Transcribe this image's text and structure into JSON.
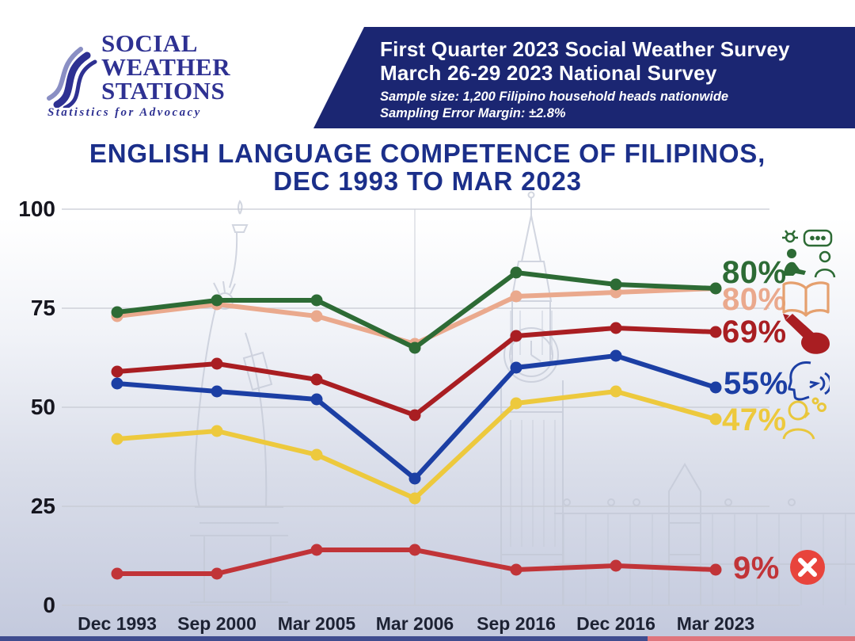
{
  "header": {
    "logo": {
      "line1": "SOCIAL",
      "line2": "WEATHER",
      "line3": "STATIONS",
      "tagline": "Statistics for Advocacy",
      "brand_color": "#2e3192"
    },
    "banner": {
      "title_line1": "First Quarter 2023 Social Weather Survey",
      "title_line2": "March 26-29 2023 National Survey",
      "subtitle_line1": "Sample size: 1,200 Filipino household heads nationwide",
      "subtitle_line2": "Sampling Error Margin: ±2.8%",
      "bg_color": "#1b2672"
    }
  },
  "title": {
    "line1": "ENGLISH LANGUAGE COMPETENCE OF FILIPINOS,",
    "line2": "DEC 1993 TO MAR 2023",
    "color": "#1b2f8a"
  },
  "chart_data": {
    "type": "line",
    "title": "English Language Competence of Filipinos, Dec 1993 to Mar 2023",
    "categories": [
      "Dec 1993",
      "Sep 2000",
      "Mar 2005",
      "Mar 2006",
      "Sep 2016",
      "Dec 2016",
      "Mar 2023"
    ],
    "y_ticks": [
      100,
      75,
      50,
      25,
      0
    ],
    "ylim": [
      0,
      100
    ],
    "grid": "horizontal",
    "legend_position": "right-end-labels-with-icons",
    "series": [
      {
        "name": "Understand spoken English",
        "icon": "understand-icon",
        "color": "#2d6b35",
        "values": [
          74,
          77,
          77,
          65,
          84,
          81,
          80
        ],
        "end_label": "80%"
      },
      {
        "name": "Read English",
        "icon": "read-book-icon",
        "color": "#eaa98d",
        "values": [
          73,
          76,
          73,
          66,
          78,
          79,
          80
        ],
        "end_label": "80%"
      },
      {
        "name": "Write English",
        "icon": "write-hand-icon",
        "color": "#a91e22",
        "values": [
          59,
          61,
          57,
          48,
          68,
          70,
          69
        ],
        "end_label": "69%"
      },
      {
        "name": "Speak English",
        "icon": "speak-icon",
        "color": "#1c3fa4",
        "values": [
          56,
          54,
          52,
          32,
          60,
          63,
          55
        ],
        "end_label": "55%"
      },
      {
        "name": "Think in English",
        "icon": "think-icon",
        "color": "#edc93d",
        "values": [
          42,
          44,
          38,
          27,
          51,
          54,
          47
        ],
        "end_label": "47%"
      },
      {
        "name": "Not competent in any way",
        "icon": "cross-circle-icon",
        "color": "#c13438",
        "values": [
          8,
          8,
          14,
          14,
          9,
          10,
          9
        ],
        "end_label": "9%"
      }
    ]
  },
  "footer": {
    "left_color": "#3f4c8f",
    "right_color": "#e0757c"
  }
}
